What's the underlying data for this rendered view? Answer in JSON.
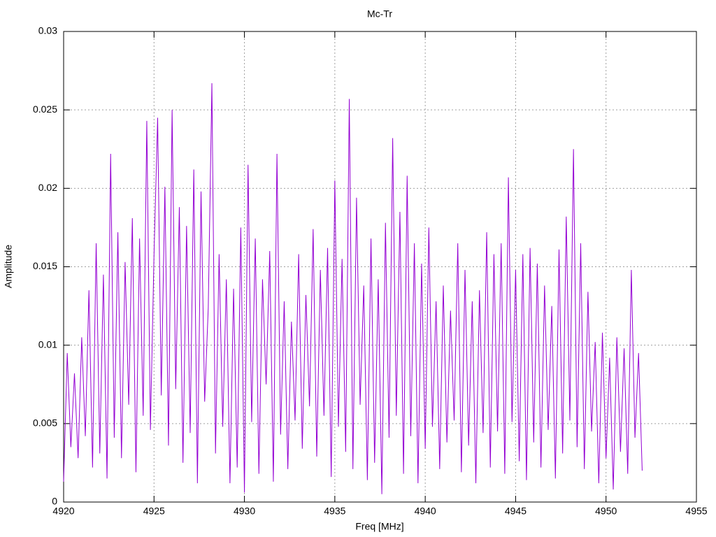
{
  "chart_data": {
    "type": "line",
    "title": "Mc-Tr",
    "x_label": "Freq [MHz]",
    "y_label": "Amplitude",
    "color": "#9400d3",
    "grid": true,
    "xlim": [
      4920,
      4955
    ],
    "xticks": [
      4920,
      4925,
      4930,
      4935,
      4940,
      4945,
      4950,
      4955
    ],
    "ylim": [
      0,
      0.03
    ],
    "yticks": [
      0,
      0.005,
      0.01,
      0.015,
      0.02,
      0.025,
      0.03
    ],
    "x": [
      4920,
      4920.2,
      4920.4,
      4920.6,
      4920.8,
      4921,
      4921.2,
      4921.4,
      4921.6,
      4921.8,
      4922,
      4922.2,
      4922.4,
      4922.6,
      4922.8,
      4923,
      4923.2,
      4923.4,
      4923.6,
      4923.8,
      4924,
      4924.2,
      4924.4,
      4924.6,
      4924.8,
      4925,
      4925.2,
      4925.4,
      4925.6,
      4925.8,
      4926,
      4926.2,
      4926.4,
      4926.6,
      4926.8,
      4927,
      4927.2,
      4927.4,
      4927.6,
      4927.8,
      4928,
      4928.2,
      4928.4,
      4928.6,
      4928.8,
      4929,
      4929.2,
      4929.4,
      4929.6,
      4929.8,
      4930,
      4930.2,
      4930.4,
      4930.6,
      4930.8,
      4931,
      4931.2,
      4931.4,
      4931.6,
      4931.8,
      4932,
      4932.2,
      4932.4,
      4932.6,
      4932.8,
      4933,
      4933.2,
      4933.4,
      4933.6,
      4933.8,
      4934,
      4934.2,
      4934.4,
      4934.6,
      4934.8,
      4935,
      4935.2,
      4935.4,
      4935.6,
      4935.8,
      4936,
      4936.2,
      4936.4,
      4936.6,
      4936.8,
      4937,
      4937.2,
      4937.4,
      4937.6,
      4937.8,
      4938,
      4938.2,
      4938.4,
      4938.6,
      4938.8,
      4939,
      4939.2,
      4939.4,
      4939.6,
      4939.8,
      4940,
      4940.2,
      4940.4,
      4940.6,
      4940.8,
      4941,
      4941.2,
      4941.4,
      4941.6,
      4941.8,
      4942,
      4942.2,
      4942.4,
      4942.6,
      4942.8,
      4943,
      4943.2,
      4943.4,
      4943.6,
      4943.8,
      4944,
      4944.2,
      4944.4,
      4944.6,
      4944.8,
      4945,
      4945.2,
      4945.4,
      4945.6,
      4945.8,
      4946,
      4946.2,
      4946.4,
      4946.6,
      4946.8,
      4947,
      4947.2,
      4947.4,
      4947.6,
      4947.8,
      4948,
      4948.2,
      4948.4,
      4948.6,
      4948.8,
      4949,
      4949.2,
      4949.4,
      4949.6,
      4949.8,
      4950,
      4950.2,
      4950.4,
      4950.6,
      4950.8,
      4951,
      4951.2,
      4951.4,
      4951.6,
      4951.8,
      4952
    ],
    "values": [
      0.0013,
      0.0095,
      0.0035,
      0.0082,
      0.0028,
      0.0105,
      0.0042,
      0.0135,
      0.0022,
      0.0165,
      0.0031,
      0.0145,
      0.0015,
      0.0222,
      0.0041,
      0.0172,
      0.0028,
      0.0153,
      0.0062,
      0.0181,
      0.0019,
      0.0168,
      0.0055,
      0.0243,
      0.0046,
      0.0158,
      0.0245,
      0.0068,
      0.0201,
      0.0036,
      0.025,
      0.0072,
      0.0188,
      0.0025,
      0.0176,
      0.0044,
      0.0212,
      0.0012,
      0.0198,
      0.0064,
      0.0124,
      0.0267,
      0.0031,
      0.0158,
      0.0048,
      0.0142,
      0.0012,
      0.0136,
      0.0022,
      0.0175,
      0.0006,
      0.0215,
      0.0051,
      0.0168,
      0.0018,
      0.0142,
      0.0075,
      0.016,
      0.0013,
      0.0222,
      0.0043,
      0.0128,
      0.0021,
      0.0115,
      0.0052,
      0.0158,
      0.0034,
      0.0132,
      0.0061,
      0.0174,
      0.0029,
      0.0148,
      0.0055,
      0.0162,
      0.0016,
      0.0205,
      0.0048,
      0.0155,
      0.0032,
      0.0257,
      0.0021,
      0.0194,
      0.0062,
      0.0138,
      0.0014,
      0.0168,
      0.0025,
      0.0142,
      0.0005,
      0.0178,
      0.0041,
      0.0232,
      0.0055,
      0.0185,
      0.0018,
      0.0208,
      0.0042,
      0.0165,
      0.0012,
      0.0152,
      0.0034,
      0.0175,
      0.0048,
      0.0128,
      0.0021,
      0.0138,
      0.0038,
      0.0122,
      0.0052,
      0.0165,
      0.0019,
      0.0148,
      0.0036,
      0.0128,
      0.0012,
      0.0135,
      0.0044,
      0.0172,
      0.0022,
      0.0158,
      0.0045,
      0.0165,
      0.0018,
      0.0207,
      0.0051,
      0.0148,
      0.0026,
      0.0158,
      0.0014,
      0.0162,
      0.0038,
      0.0152,
      0.0022,
      0.0138,
      0.0046,
      0.0125,
      0.0015,
      0.0161,
      0.0031,
      0.0182,
      0.0052,
      0.0225,
      0.0035,
      0.0165,
      0.0021,
      0.0134,
      0.0045,
      0.0102,
      0.0012,
      0.0108,
      0.0028,
      0.0092,
      0.0008,
      0.0105,
      0.0032,
      0.0098,
      0.0018,
      0.0148,
      0.0041,
      0.0095,
      0.002
    ]
  }
}
